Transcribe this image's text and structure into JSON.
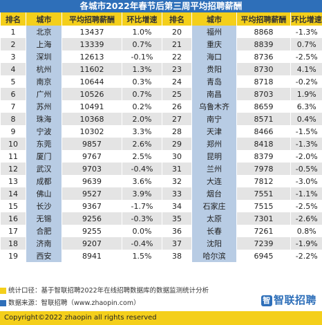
{
  "title": "各城市2022年春节后第三周平均招聘薪酬",
  "headers": [
    "排名",
    "城市",
    "平均招聘薪酬",
    "环比增速",
    "排名",
    "城市",
    "平均招聘薪酬",
    "环比增速"
  ],
  "rows": [
    {
      "rank_l": "1",
      "city_l": "北京",
      "salary_l": "13437",
      "growth_l": "1.0%",
      "rank_r": "20",
      "city_r": "福州",
      "salary_r": "8868",
      "growth_r": "-1.3%"
    },
    {
      "rank_l": "2",
      "city_l": "上海",
      "salary_l": "13339",
      "growth_l": "0.7%",
      "rank_r": "21",
      "city_r": "重庆",
      "salary_r": "8839",
      "growth_r": "0.7%"
    },
    {
      "rank_l": "3",
      "city_l": "深圳",
      "salary_l": "12613",
      "growth_l": "-0.1%",
      "rank_r": "22",
      "city_r": "海口",
      "salary_r": "8736",
      "growth_r": "-2.5%"
    },
    {
      "rank_l": "4",
      "city_l": "杭州",
      "salary_l": "11602",
      "growth_l": "1.3%",
      "rank_r": "23",
      "city_r": "贵阳",
      "salary_r": "8730",
      "growth_r": "4.1%"
    },
    {
      "rank_l": "5",
      "city_l": "南京",
      "salary_l": "10644",
      "growth_l": "0.3%",
      "rank_r": "24",
      "city_r": "青岛",
      "salary_r": "8718",
      "growth_r": "-0.2%"
    },
    {
      "rank_l": "6",
      "city_l": "广州",
      "salary_l": "10526",
      "growth_l": "0.7%",
      "rank_r": "25",
      "city_r": "南昌",
      "salary_r": "8703",
      "growth_r": "1.9%"
    },
    {
      "rank_l": "7",
      "city_l": "苏州",
      "salary_l": "10491",
      "growth_l": "0.2%",
      "rank_r": "26",
      "city_r": "乌鲁木齐",
      "salary_r": "8659",
      "growth_r": "6.3%"
    },
    {
      "rank_l": "8",
      "city_l": "珠海",
      "salary_l": "10368",
      "growth_l": "2.0%",
      "rank_r": "27",
      "city_r": "南宁",
      "salary_r": "8571",
      "growth_r": "0.4%"
    },
    {
      "rank_l": "9",
      "city_l": "宁波",
      "salary_l": "10302",
      "growth_l": "3.3%",
      "rank_r": "28",
      "city_r": "天津",
      "salary_r": "8466",
      "growth_r": "-1.5%"
    },
    {
      "rank_l": "10",
      "city_l": "东莞",
      "salary_l": "9857",
      "growth_l": "2.6%",
      "rank_r": "29",
      "city_r": "郑州",
      "salary_r": "8418",
      "growth_r": "-1.3%"
    },
    {
      "rank_l": "11",
      "city_l": "厦门",
      "salary_l": "9767",
      "growth_l": "2.5%",
      "rank_r": "30",
      "city_r": "昆明",
      "salary_r": "8379",
      "growth_r": "-2.0%"
    },
    {
      "rank_l": "12",
      "city_l": "武汉",
      "salary_l": "9703",
      "growth_l": "-0.4%",
      "rank_r": "31",
      "city_r": "兰州",
      "salary_r": "7978",
      "growth_r": "-0.5%"
    },
    {
      "rank_l": "13",
      "city_l": "成都",
      "salary_l": "9639",
      "growth_l": "3.6%",
      "rank_r": "32",
      "city_r": "大连",
      "salary_r": "7812",
      "growth_r": "-3.0%"
    },
    {
      "rank_l": "14",
      "city_l": "佛山",
      "salary_l": "9527",
      "growth_l": "3.9%",
      "rank_r": "33",
      "city_r": "烟台",
      "salary_r": "7551",
      "growth_r": "-1.1%"
    },
    {
      "rank_l": "15",
      "city_l": "长沙",
      "salary_l": "9367",
      "growth_l": "-1.7%",
      "rank_r": "34",
      "city_r": "石家庄",
      "salary_r": "7515",
      "growth_r": "-2.5%"
    },
    {
      "rank_l": "16",
      "city_l": "无锡",
      "salary_l": "9256",
      "growth_l": "-0.3%",
      "rank_r": "35",
      "city_r": "太原",
      "salary_r": "7301",
      "growth_r": "-2.6%"
    },
    {
      "rank_l": "17",
      "city_l": "合肥",
      "salary_l": "9255",
      "growth_l": "0.0%",
      "rank_r": "36",
      "city_r": "长春",
      "salary_r": "7261",
      "growth_r": "0.8%"
    },
    {
      "rank_l": "18",
      "city_l": "济南",
      "salary_l": "9207",
      "growth_l": "-0.4%",
      "rank_r": "37",
      "city_r": "沈阳",
      "salary_r": "7239",
      "growth_r": "-1.9%"
    },
    {
      "rank_l": "19",
      "city_l": "西安",
      "salary_l": "8941",
      "growth_l": "1.5%",
      "rank_r": "38",
      "city_r": "哈尔滨",
      "salary_r": "6945",
      "growth_r": "-2.2%"
    }
  ],
  "notes": {
    "caliber": "统计口径：基于智联招聘2022年在线招聘数据库的数据监测统计分析",
    "source": "数据来源：智联招聘（www.zhaopin.com）",
    "caliber_color": "#f4cf1b",
    "source_color": "#2e6fb9"
  },
  "logo": {
    "mark": "智",
    "text": "智联招聘"
  },
  "copyright": "Copyright©2022 zhaopin all rights reserved",
  "colors": {
    "title_bg": "#2e6fb9",
    "header_bg": "#f4cf1b",
    "city_bg": "#b8cce4",
    "stripe_bg": "#e4e4e4"
  }
}
